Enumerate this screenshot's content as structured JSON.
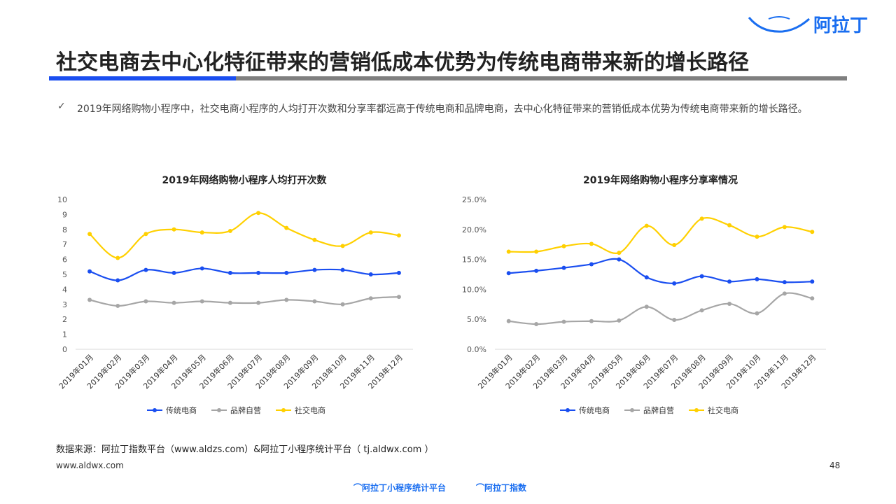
{
  "header": {
    "title": "社交电商去中心化特征带来的营销低成本优势为传统电商带来新的增长路径",
    "logo": "阿拉丁",
    "accent": "#1a4ef0"
  },
  "bullet": {
    "icon": "check-icon",
    "mark": "✓",
    "text": "2019年网络购物小程序中，社交电商小程序的人均打开次数和分享率都远高于传统电商和品牌电商，去中心化特征带来的营销低成本优势为传统电商带来新的增长路径。"
  },
  "chart_data": [
    {
      "type": "line",
      "title": "2019年网络购物小程序人均打开次数",
      "categories": [
        "2019年01月",
        "2019年02月",
        "2019年03月",
        "2019年04月",
        "2019年05月",
        "2019年06月",
        "2019年07月",
        "2019年08月",
        "2019年09月",
        "2019年10月",
        "2019年11月",
        "2019年12月"
      ],
      "ylim": [
        0,
        10
      ],
      "yticks": [
        "0",
        "1",
        "2",
        "3",
        "4",
        "5",
        "6",
        "7",
        "8",
        "9",
        "10"
      ],
      "legend": "bottom",
      "grid": false,
      "series": [
        {
          "name": "传统电商",
          "color": "#1a4ef0",
          "values": [
            5.2,
            4.6,
            5.3,
            5.1,
            5.4,
            5.1,
            5.1,
            5.1,
            5.3,
            5.3,
            5.0,
            5.1
          ]
        },
        {
          "name": "品牌自营",
          "color": "#a6a6a6",
          "values": [
            3.3,
            2.9,
            3.2,
            3.1,
            3.2,
            3.1,
            3.1,
            3.3,
            3.2,
            3.0,
            3.4,
            3.5
          ]
        },
        {
          "name": "社交电商",
          "color": "#ffd000",
          "values": [
            7.7,
            6.1,
            7.7,
            8.0,
            7.8,
            7.9,
            9.1,
            8.1,
            7.3,
            6.9,
            7.8,
            7.6
          ]
        }
      ]
    },
    {
      "type": "line",
      "title": "2019年网络购物小程序分享率情况",
      "categories": [
        "2019年01月",
        "2019年02月",
        "2019年03月",
        "2019年04月",
        "2019年05月",
        "2019年06月",
        "2019年07月",
        "2019年08月",
        "2019年09月",
        "2019年10月",
        "2019年11月",
        "2019年12月"
      ],
      "ylim": [
        0,
        25
      ],
      "yticks": [
        "0.0%",
        "5.0%",
        "10.0%",
        "15.0%",
        "20.0%",
        "25.0%"
      ],
      "legend": "bottom",
      "grid": false,
      "series": [
        {
          "name": "传统电商",
          "color": "#1a4ef0",
          "values": [
            12.7,
            13.1,
            13.6,
            14.2,
            15.0,
            12.0,
            11.0,
            12.2,
            11.3,
            11.7,
            11.2,
            11.3
          ]
        },
        {
          "name": "品牌自营",
          "color": "#a6a6a6",
          "values": [
            4.7,
            4.2,
            4.6,
            4.7,
            4.8,
            7.1,
            4.9,
            6.5,
            7.6,
            6.0,
            9.3,
            8.5
          ]
        },
        {
          "name": "社交电商",
          "color": "#ffd000",
          "values": [
            16.3,
            16.3,
            17.2,
            17.6,
            16.1,
            20.6,
            17.4,
            21.8,
            20.7,
            18.8,
            20.4,
            19.6
          ]
        }
      ]
    }
  ],
  "footer": {
    "source": "数据来源：阿拉丁指数平台（www.aldzs.com）&阿拉丁小程序统计平台（  tj.aldwx.com  ）",
    "site": "www.aldwx.com",
    "page": "48",
    "logo1": "阿拉丁小程序统计平台",
    "logo2": "阿拉丁指数"
  }
}
